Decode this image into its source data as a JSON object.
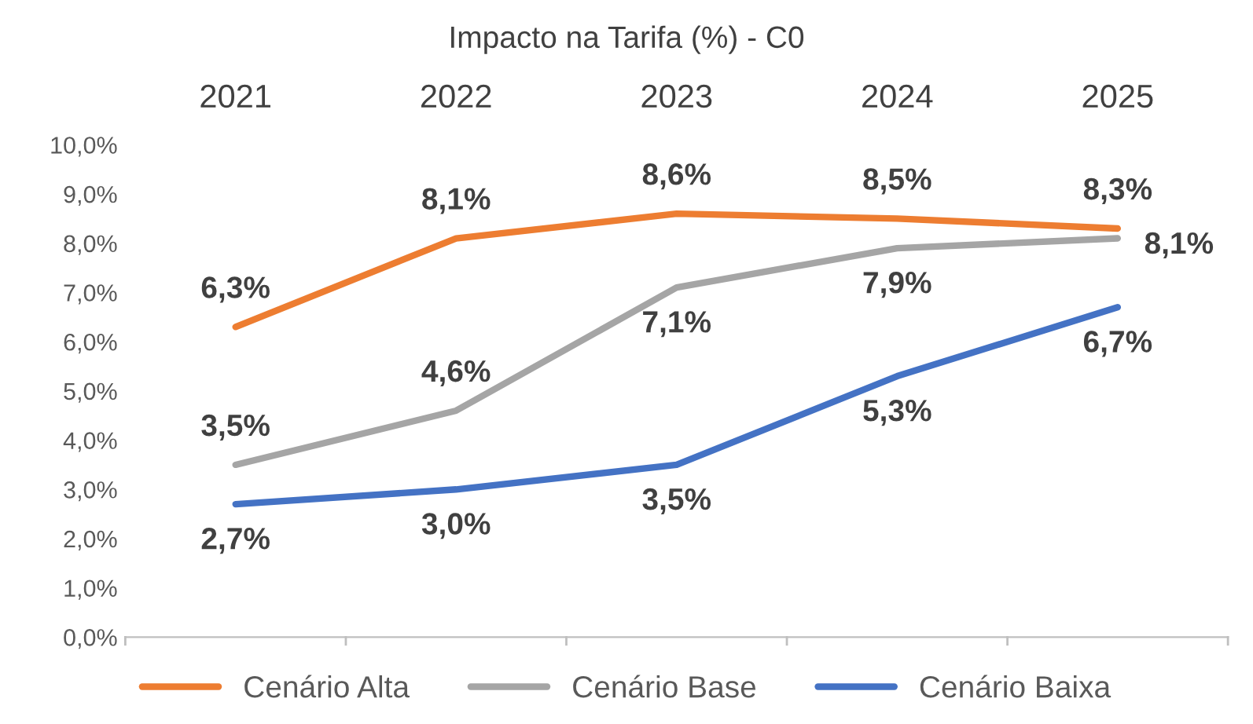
{
  "chart_data": {
    "type": "line",
    "title": "Impacto na Tarifa (%) - C0",
    "categories": [
      "2021",
      "2022",
      "2023",
      "2024",
      "2025"
    ],
    "series": [
      {
        "name": "Cenário Alta",
        "color": "#ed7d31",
        "values": [
          6.3,
          8.1,
          8.6,
          8.5,
          8.3
        ],
        "value_labels": [
          "6,3%",
          "8,1%",
          "8,6%",
          "8,5%",
          "8,3%"
        ]
      },
      {
        "name": "Cenário Base",
        "color": "#a5a5a5",
        "values": [
          3.5,
          4.6,
          7.1,
          7.9,
          8.1
        ],
        "value_labels": [
          "3,5%",
          "4,6%",
          "7,1%",
          "7,9%",
          "8,1%"
        ]
      },
      {
        "name": "Cenário Baixa",
        "color": "#4472c4",
        "values": [
          2.7,
          3.0,
          3.5,
          5.3,
          6.7
        ],
        "value_labels": [
          "2,7%",
          "3,0%",
          "3,5%",
          "5,3%",
          "6,7%"
        ]
      }
    ],
    "ylim": [
      0,
      10
    ],
    "yticks": [
      {
        "value": 0,
        "label": "0,0%"
      },
      {
        "value": 1,
        "label": "1,0%"
      },
      {
        "value": 2,
        "label": "2,0%"
      },
      {
        "value": 3,
        "label": "3,0%"
      },
      {
        "value": 4,
        "label": "4,0%"
      },
      {
        "value": 5,
        "label": "5,0%"
      },
      {
        "value": 6,
        "label": "6,0%"
      },
      {
        "value": 7,
        "label": "7,0%"
      },
      {
        "value": 8,
        "label": "8,0%"
      },
      {
        "value": 9,
        "label": "9,0%"
      },
      {
        "value": 10,
        "label": "10,0%"
      }
    ],
    "grid": false,
    "legend": "bottom",
    "marker": "none",
    "line_style": "solid"
  }
}
